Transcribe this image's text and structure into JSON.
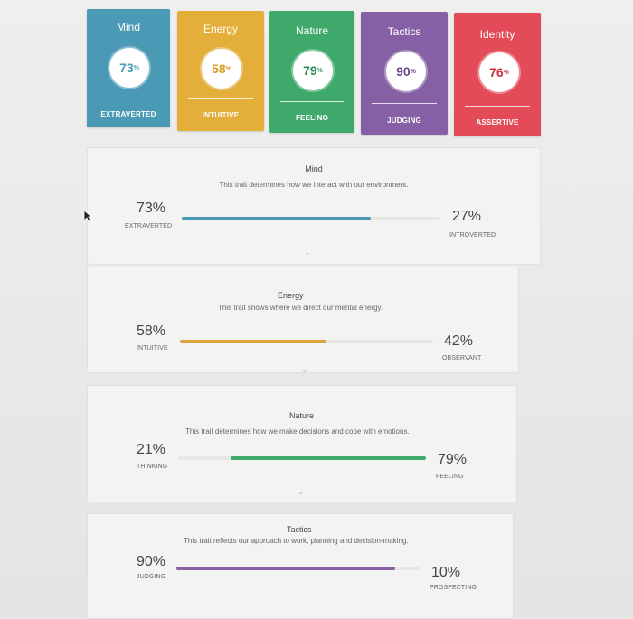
{
  "colors": {
    "mind": "#4a9ab5",
    "energy": "#e4ae3a",
    "nature": "#3fa96c",
    "tactics": "#8660a4",
    "identity": "#e34b58"
  },
  "cards": [
    {
      "title": "Mind",
      "percent": "73",
      "trait": "EXTRAVERTED"
    },
    {
      "title": "Energy",
      "percent": "58",
      "trait": "INTUITIVE"
    },
    {
      "title": "Nature",
      "percent": "79",
      "trait": "FEELING"
    },
    {
      "title": "Tactics",
      "percent": "90",
      "trait": "JUDGING"
    },
    {
      "title": "Identity",
      "percent": "76",
      "trait": "ASSERTIVE"
    }
  ],
  "percent_sign": "%",
  "panels": [
    {
      "title": "Mind",
      "description": "This trait determines how we interact with our environment.",
      "left_percent": "73%",
      "left_label": "EXTRAVERTED",
      "right_percent": "27%",
      "right_label": "INTROVERTED",
      "fill_fraction": 0.73,
      "fill_side": "left"
    },
    {
      "title": "Energy",
      "description": "This trait shows where we direct our mental energy.",
      "left_percent": "58%",
      "left_label": "INTUITIVE",
      "right_percent": "42%",
      "right_label": "OBSERVANT",
      "fill_fraction": 0.58,
      "fill_side": "left"
    },
    {
      "title": "Nature",
      "description": "This trait determines how we make decisions and cope with emotions.",
      "left_percent": "21%",
      "left_label": "THINKING",
      "right_percent": "79%",
      "right_label": "FEELING",
      "fill_fraction": 0.79,
      "fill_side": "right"
    },
    {
      "title": "Tactics",
      "description": "This trait reflects our approach to work, planning and decision-making.",
      "left_percent": "90%",
      "left_label": "JUDGING",
      "right_percent": "10%",
      "right_label": "PROSPECTING",
      "fill_fraction": 0.9,
      "fill_side": "left"
    }
  ]
}
